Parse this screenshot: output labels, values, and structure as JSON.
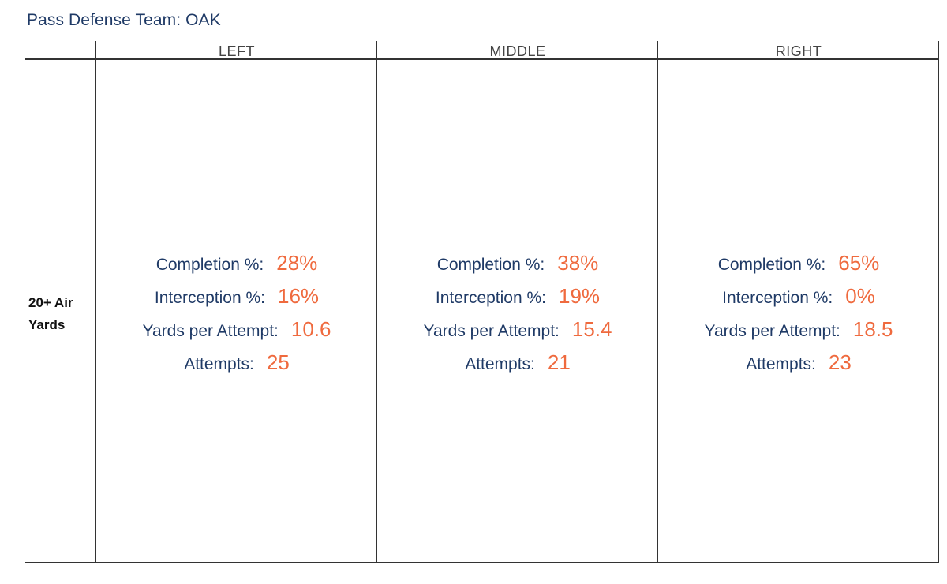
{
  "chart_data": {
    "type": "table",
    "title": "Pass Defense Team: OAK",
    "row_label": "20+ Air Yards",
    "columns": [
      {
        "name": "LEFT",
        "completion_pct": "28%",
        "interception_pct": "16%",
        "yards_per_attempt": "10.6",
        "attempts": "25"
      },
      {
        "name": "MIDDLE",
        "completion_pct": "38%",
        "interception_pct": "19%",
        "yards_per_attempt": "15.4",
        "attempts": "21"
      },
      {
        "name": "RIGHT",
        "completion_pct": "65%",
        "interception_pct": "0%",
        "yards_per_attempt": "18.5",
        "attempts": "23"
      }
    ],
    "metric_labels": {
      "completion_pct": "Completion %:",
      "interception_pct": "Interception %:",
      "yards_per_attempt": "Yards per Attempt:",
      "attempts": "Attempts:"
    },
    "colors": {
      "label": "#1f3a66",
      "value": "#ef6a3e",
      "rule": "#333333"
    }
  }
}
